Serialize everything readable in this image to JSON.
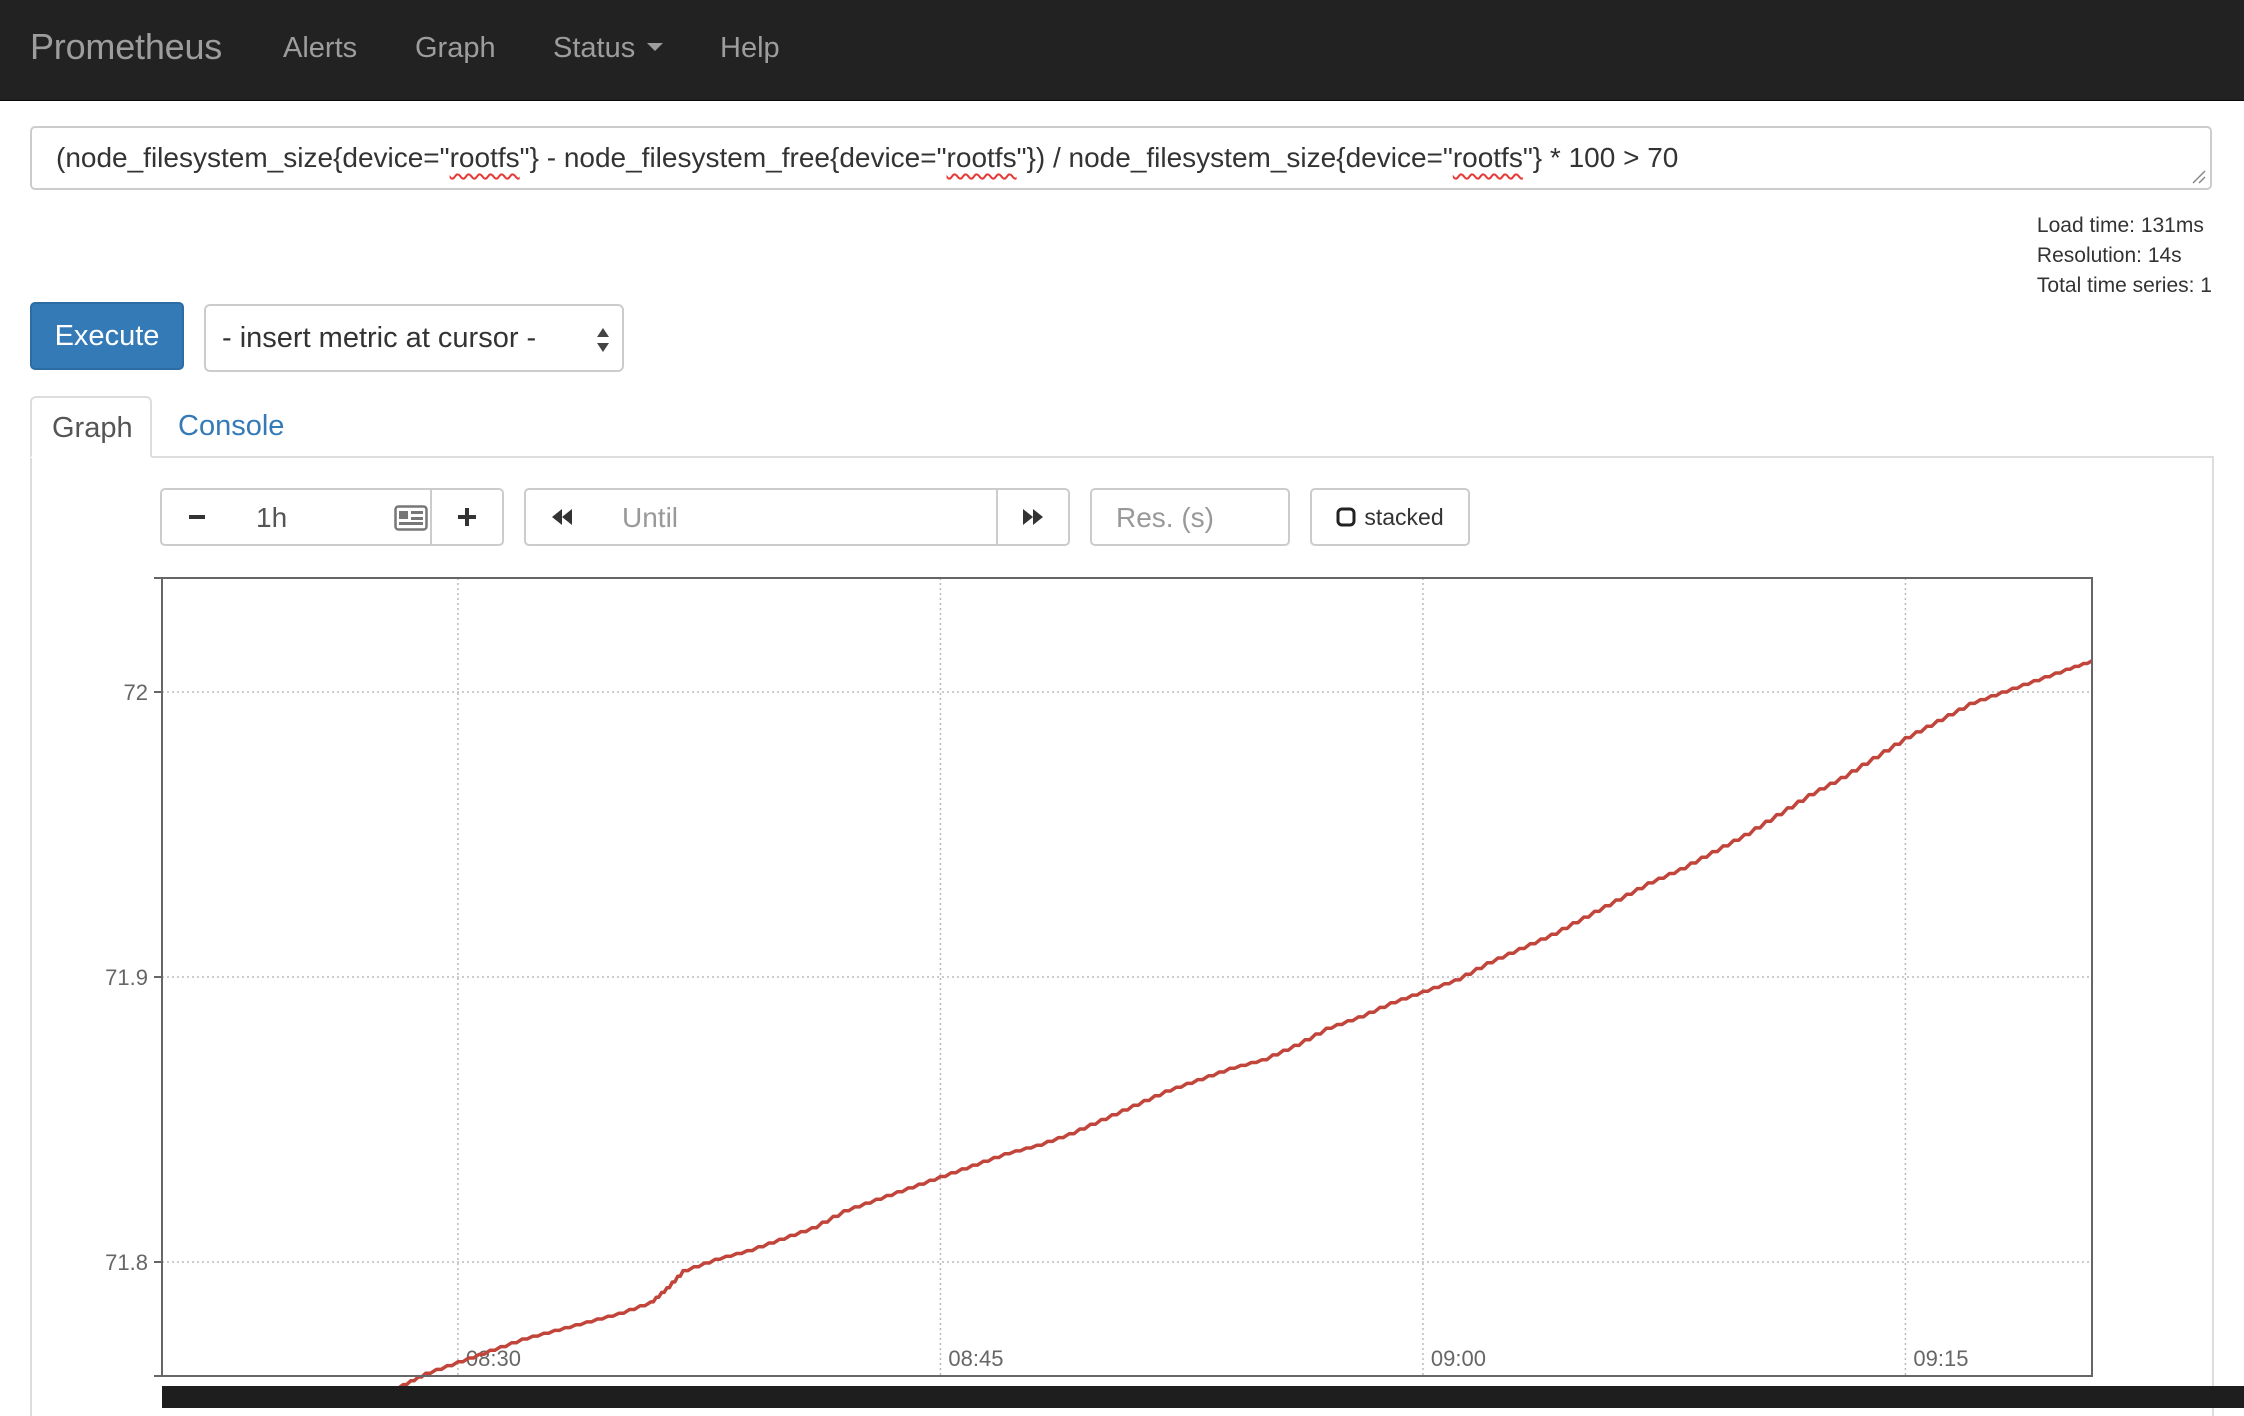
{
  "navbar": {
    "brand": "Prometheus",
    "items": [
      {
        "label": "Alerts"
      },
      {
        "label": "Graph"
      },
      {
        "label": "Status",
        "dropdown": true
      },
      {
        "label": "Help"
      }
    ]
  },
  "expression": {
    "parts": [
      {
        "text": "(node_filesystem_size{device=\"",
        "spell": false
      },
      {
        "text": "rootfs",
        "spell": true
      },
      {
        "text": "\"} - node_filesystem_free{device=\"",
        "spell": false
      },
      {
        "text": "rootfs",
        "spell": true
      },
      {
        "text": "\"}) / node_filesystem_size{device=\"",
        "spell": false
      },
      {
        "text": "rootfs",
        "spell": true
      },
      {
        "text": "\"} * 100 > 70",
        "spell": false
      }
    ]
  },
  "stats": {
    "load_time": "Load time: 131ms",
    "resolution": "Resolution: 14s",
    "total_series": "Total time series: 1"
  },
  "execute_label": "Execute",
  "metric_select": {
    "selected": "- insert metric at cursor -"
  },
  "tabs": [
    {
      "label": "Graph",
      "active": true
    },
    {
      "label": "Console",
      "active": false
    }
  ],
  "controls": {
    "range_value": "1h",
    "until_placeholder": "Until",
    "res_placeholder": "Res. (s)",
    "stacked_label": "stacked",
    "icons": [
      "minus-icon",
      "calendar-icon",
      "plus-icon",
      "backward-icon",
      "forward-icon",
      "checkbox-icon"
    ]
  },
  "colors": {
    "navbar_bg": "#222222",
    "navbar_text": "#9d9d9d",
    "execute_bg": "#337ab7",
    "link": "#337ab7",
    "series": "#c1453a",
    "spell_underline": "#e53935"
  },
  "chart_data": {
    "type": "line",
    "x_ticks": [
      "08:30",
      "08:45",
      "09:00",
      "09:15"
    ],
    "x_tick_minutes": [
      30,
      45,
      60,
      75
    ],
    "y_ticks": [
      "71.8",
      "71.9",
      "72"
    ],
    "y_tick_values": [
      71.8,
      71.9,
      72.0
    ],
    "xlim_minutes": [
      20.8,
      80.8
    ],
    "ylim": [
      71.76,
      72.04
    ],
    "grid": true,
    "legend": "none",
    "series": [
      {
        "points": [
          [
            20.8,
            71.73
          ],
          [
            21.5,
            71.732
          ],
          [
            22.0,
            71.736
          ],
          [
            22.8,
            71.738
          ],
          [
            24.0,
            71.741
          ],
          [
            25.0,
            71.744
          ],
          [
            26.0,
            71.749
          ],
          [
            27.2,
            71.752
          ],
          [
            28.3,
            71.757
          ],
          [
            29.0,
            71.761
          ],
          [
            30.0,
            71.765
          ],
          [
            31.0,
            71.769
          ],
          [
            32.0,
            71.773
          ],
          [
            33.0,
            71.776
          ],
          [
            34.0,
            71.779
          ],
          [
            35.0,
            71.782
          ],
          [
            36.0,
            71.786
          ],
          [
            36.5,
            71.791
          ],
          [
            37.0,
            71.797
          ],
          [
            38.0,
            71.801
          ],
          [
            39.0,
            71.804
          ],
          [
            40.0,
            71.808
          ],
          [
            41.0,
            71.812
          ],
          [
            42.0,
            71.818
          ],
          [
            43.0,
            71.822
          ],
          [
            44.0,
            71.826
          ],
          [
            45.0,
            71.83
          ],
          [
            46.0,
            71.834
          ],
          [
            47.0,
            71.838
          ],
          [
            48.0,
            71.841
          ],
          [
            49.0,
            71.845
          ],
          [
            50.0,
            71.85
          ],
          [
            51.0,
            71.855
          ],
          [
            52.0,
            71.86
          ],
          [
            53.0,
            71.864
          ],
          [
            54.0,
            71.868
          ],
          [
            55.0,
            71.871
          ],
          [
            56.0,
            71.876
          ],
          [
            57.0,
            71.882
          ],
          [
            58.0,
            71.886
          ],
          [
            59.0,
            71.891
          ],
          [
            60.0,
            71.895
          ],
          [
            61.0,
            71.899
          ],
          [
            62.0,
            71.905
          ],
          [
            63.0,
            71.91
          ],
          [
            64.0,
            71.915
          ],
          [
            65.0,
            71.921
          ],
          [
            66.0,
            71.927
          ],
          [
            67.0,
            71.933
          ],
          [
            68.0,
            71.938
          ],
          [
            69.0,
            71.944
          ],
          [
            70.0,
            71.95
          ],
          [
            71.0,
            71.957
          ],
          [
            72.0,
            71.964
          ],
          [
            73.0,
            71.97
          ],
          [
            74.0,
            71.977
          ],
          [
            75.0,
            71.984
          ],
          [
            76.0,
            71.99
          ],
          [
            77.0,
            71.996
          ],
          [
            78.0,
            72.0
          ],
          [
            79.0,
            72.004
          ],
          [
            80.0,
            72.008
          ],
          [
            80.8,
            72.011
          ]
        ]
      }
    ]
  }
}
